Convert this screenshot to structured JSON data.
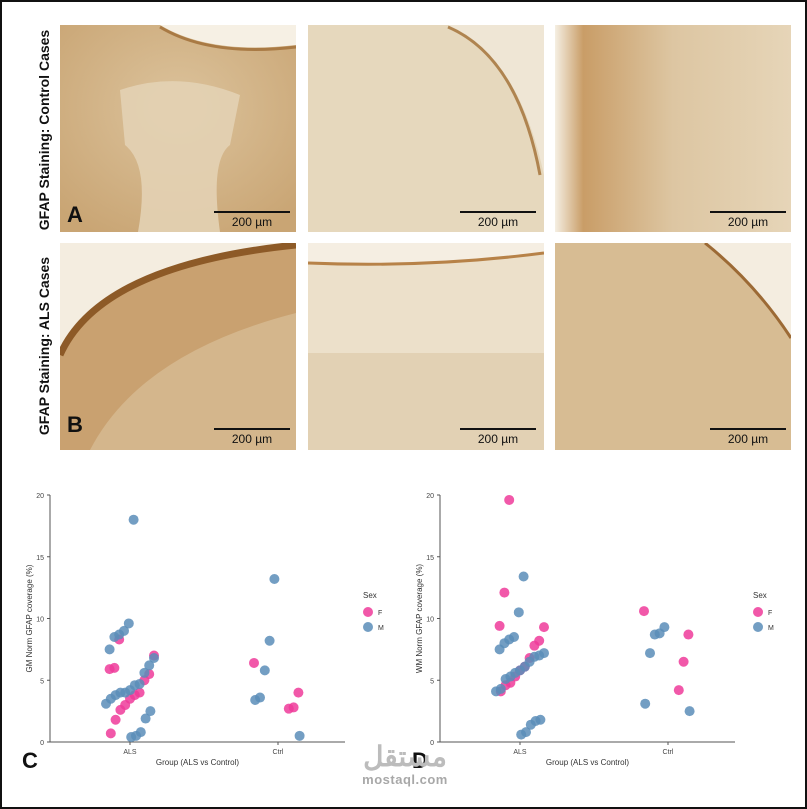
{
  "figure": {
    "row_a_label": "GFAP Staining: Control Cases",
    "row_b_label": "GFAP Staining: ALS Cases",
    "letters": {
      "a": "A",
      "b": "B",
      "c": "C",
      "d": "D"
    },
    "scale_bar_text": "200 µm",
    "watermark": {
      "arabic": "مستقل",
      "latin": "mostaql.com"
    },
    "colors": {
      "female": "#ee3b9a",
      "male": "#5b8db8",
      "tissue_light": "#efe4cf",
      "tissue_dark": "#b78248"
    }
  },
  "chart_data": [
    {
      "type": "scatter",
      "panel": "C",
      "xlabel": "Group (ALS vs Control)",
      "ylabel": "GM Norm GFAP coverage (%)",
      "categories": [
        "ALS",
        "Ctrl"
      ],
      "ylim": [
        0,
        20
      ],
      "yticks": [
        "0",
        "5",
        "10",
        "15",
        "20"
      ],
      "grid": false,
      "legend": {
        "title": "Sex",
        "placement": "right",
        "entries": [
          "F",
          "M"
        ]
      },
      "series": [
        {
          "name": "F",
          "color": "#ee3b9a",
          "points": [
            [
              "ALS",
              8.3
            ],
            [
              "ALS",
              6.0
            ],
            [
              "ALS",
              5.9
            ],
            [
              "ALS",
              7.0
            ],
            [
              "ALS",
              5.5
            ],
            [
              "ALS",
              5.0
            ],
            [
              "ALS",
              4.0
            ],
            [
              "ALS",
              3.8
            ],
            [
              "ALS",
              3.5
            ],
            [
              "ALS",
              3.0
            ],
            [
              "ALS",
              2.6
            ],
            [
              "ALS",
              1.8
            ],
            [
              "ALS",
              0.7
            ],
            [
              "Ctrl",
              6.4
            ],
            [
              "Ctrl",
              4.0
            ],
            [
              "Ctrl",
              2.8
            ],
            [
              "Ctrl",
              2.7
            ]
          ]
        },
        {
          "name": "M",
          "color": "#5b8db8",
          "points": [
            [
              "ALS",
              18.0
            ],
            [
              "ALS",
              9.6
            ],
            [
              "ALS",
              9.0
            ],
            [
              "ALS",
              8.7
            ],
            [
              "ALS",
              8.5
            ],
            [
              "ALS",
              7.5
            ],
            [
              "ALS",
              6.8
            ],
            [
              "ALS",
              6.2
            ],
            [
              "ALS",
              5.6
            ],
            [
              "ALS",
              4.7
            ],
            [
              "ALS",
              4.6
            ],
            [
              "ALS",
              4.2
            ],
            [
              "ALS",
              4.0
            ],
            [
              "ALS",
              4.0
            ],
            [
              "ALS",
              3.8
            ],
            [
              "ALS",
              3.5
            ],
            [
              "ALS",
              3.1
            ],
            [
              "ALS",
              2.5
            ],
            [
              "ALS",
              1.9
            ],
            [
              "ALS",
              0.8
            ],
            [
              "ALS",
              0.5
            ],
            [
              "ALS",
              0.4
            ],
            [
              "Ctrl",
              13.2
            ],
            [
              "Ctrl",
              8.2
            ],
            [
              "Ctrl",
              5.8
            ],
            [
              "Ctrl",
              3.6
            ],
            [
              "Ctrl",
              3.4
            ],
            [
              "Ctrl",
              0.5
            ]
          ]
        }
      ]
    },
    {
      "type": "scatter",
      "panel": "D",
      "xlabel": "Group (ALS vs Control)",
      "ylabel": "WM Norm GFAP coverage (%)",
      "categories": [
        "ALS",
        "Ctrl"
      ],
      "ylim": [
        0,
        20
      ],
      "yticks": [
        "0",
        "5",
        "10",
        "15",
        "20"
      ],
      "grid": false,
      "legend": {
        "title": "Sex",
        "placement": "right",
        "entries": [
          "F",
          "M"
        ]
      },
      "series": [
        {
          "name": "F",
          "color": "#ee3b9a",
          "points": [
            [
              "ALS",
              19.6
            ],
            [
              "ALS",
              12.1
            ],
            [
              "ALS",
              9.4
            ],
            [
              "ALS",
              9.3
            ],
            [
              "ALS",
              8.2
            ],
            [
              "ALS",
              7.8
            ],
            [
              "ALS",
              6.8
            ],
            [
              "ALS",
              6.1
            ],
            [
              "ALS",
              5.8
            ],
            [
              "ALS",
              5.3
            ],
            [
              "ALS",
              4.8
            ],
            [
              "ALS",
              4.6
            ],
            [
              "ALS",
              4.1
            ],
            [
              "Ctrl",
              10.6
            ],
            [
              "Ctrl",
              8.7
            ],
            [
              "Ctrl",
              6.5
            ],
            [
              "Ctrl",
              4.2
            ]
          ]
        },
        {
          "name": "M",
          "color": "#5b8db8",
          "points": [
            [
              "ALS",
              13.4
            ],
            [
              "ALS",
              10.5
            ],
            [
              "ALS",
              8.5
            ],
            [
              "ALS",
              8.3
            ],
            [
              "ALS",
              8.0
            ],
            [
              "ALS",
              7.5
            ],
            [
              "ALS",
              7.2
            ],
            [
              "ALS",
              7.0
            ],
            [
              "ALS",
              6.9
            ],
            [
              "ALS",
              6.5
            ],
            [
              "ALS",
              6.1
            ],
            [
              "ALS",
              5.8
            ],
            [
              "ALS",
              5.6
            ],
            [
              "ALS",
              5.3
            ],
            [
              "ALS",
              5.1
            ],
            [
              "ALS",
              4.3
            ],
            [
              "ALS",
              4.1
            ],
            [
              "ALS",
              1.8
            ],
            [
              "ALS",
              1.7
            ],
            [
              "ALS",
              1.4
            ],
            [
              "ALS",
              0.8
            ],
            [
              "ALS",
              0.6
            ],
            [
              "Ctrl",
              9.3
            ],
            [
              "Ctrl",
              8.8
            ],
            [
              "Ctrl",
              8.7
            ],
            [
              "Ctrl",
              7.2
            ],
            [
              "Ctrl",
              3.1
            ],
            [
              "Ctrl",
              2.5
            ]
          ]
        }
      ]
    }
  ]
}
